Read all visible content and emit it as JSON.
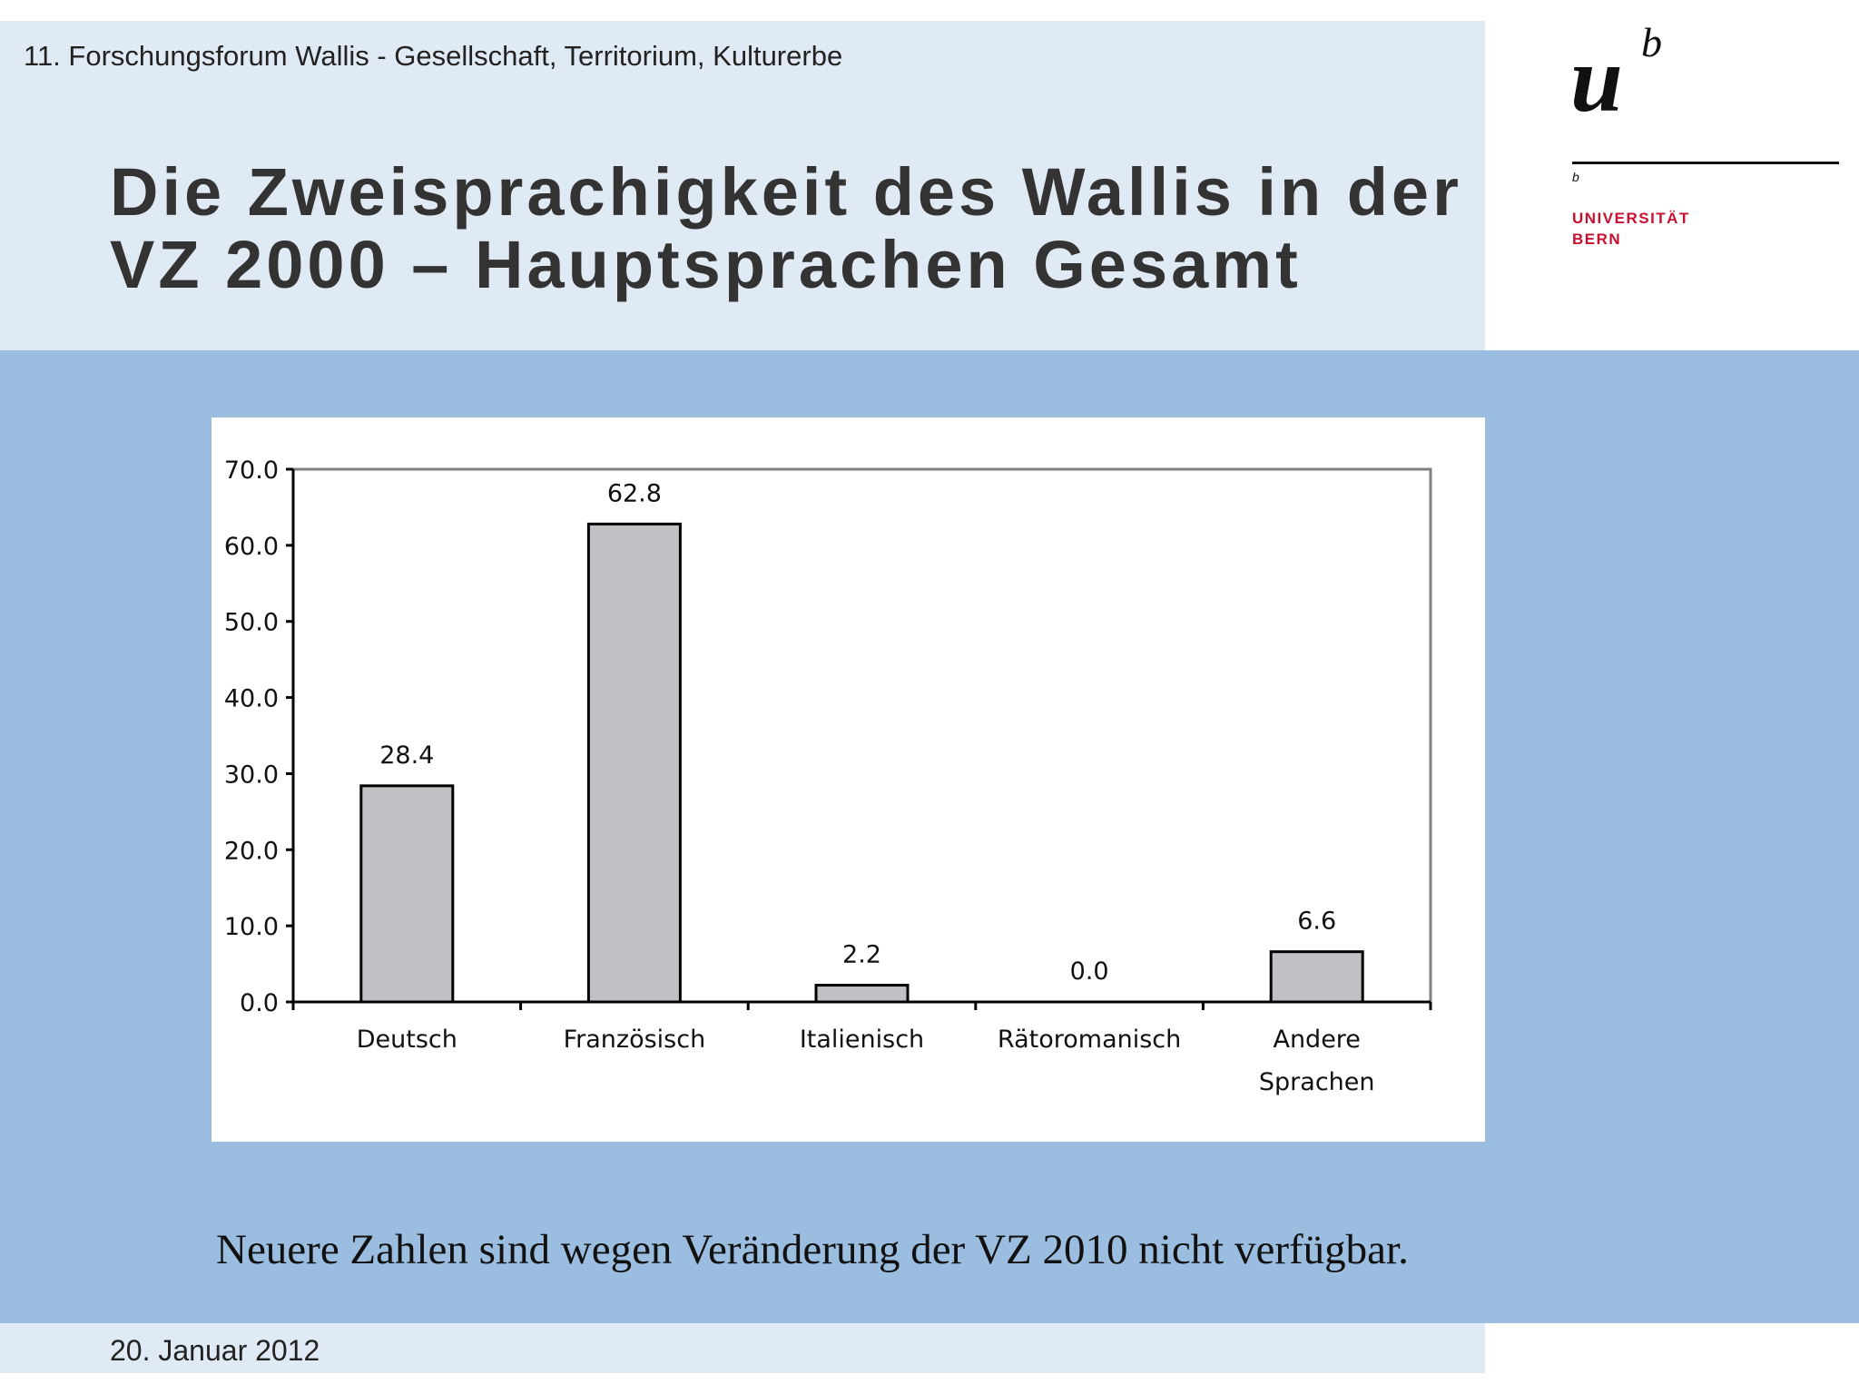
{
  "header": {
    "conference": "11. Forschungsforum Wallis - Gesellschaft, Territorium, Kulturerbe",
    "title_lines": [
      "Die Zweisprachigkeit des Wallis in der",
      "VZ 2000 – Hauptsprachen Gesamt"
    ]
  },
  "logo": {
    "mark": "u",
    "superscript": "b",
    "small_b": "b",
    "line1": "UNIVERSITÄT",
    "line2": "BERN",
    "accent_color": "#c8102e"
  },
  "chart_data": {
    "type": "bar",
    "categories": [
      "Deutsch",
      "Französisch",
      "Italienisch",
      "Rätoromanisch",
      "Andere Sprachen"
    ],
    "category_label_lines": [
      [
        "Deutsch"
      ],
      [
        "Französisch"
      ],
      [
        "Italienisch"
      ],
      [
        "Rätoromanisch"
      ],
      [
        "Andere",
        "Sprachen"
      ]
    ],
    "values": [
      28.4,
      62.8,
      2.2,
      0.0,
      6.6
    ],
    "data_labels": [
      "28.4",
      "62.8",
      "2.2",
      "0.0",
      "6.6"
    ],
    "y_ticks": [
      "0.0",
      "10.0",
      "20.0",
      "30.0",
      "40.0",
      "50.0",
      "60.0",
      "70.0"
    ],
    "ylim": [
      0,
      70
    ],
    "bar_color": "#c2c0c4",
    "grid": false
  },
  "note": "Neuere Zahlen sind wegen Veränderung der VZ 2010 nicht verfügbar.",
  "footer": {
    "date": "20. Januar 2012"
  }
}
